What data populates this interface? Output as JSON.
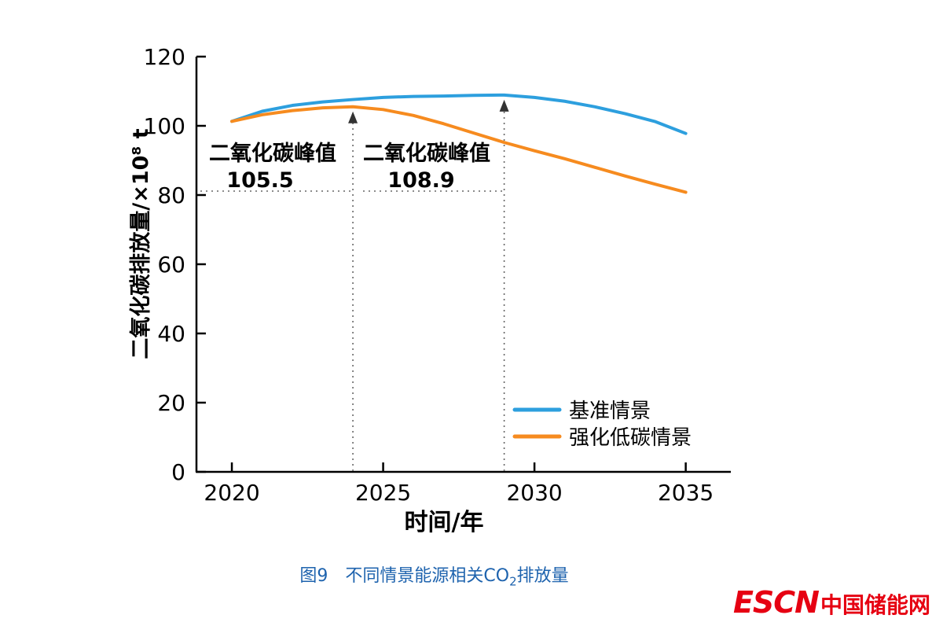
{
  "caption": {
    "prefix": "图9　不同情景能源相关CO",
    "sub": "2",
    "suffix": "排放量"
  },
  "logo": {
    "en": "ESCN",
    "cn": "中国储能网",
    "color": "#E60012"
  },
  "chart_data": {
    "type": "line",
    "title": "",
    "xlabel": "时间/年",
    "ylabel": "二氧化碳排放量/×10⁸ t",
    "xlim": [
      2018.83,
      2036.49
    ],
    "ylim": [
      0,
      120
    ],
    "xticks": [
      2020,
      2025,
      2030,
      2035
    ],
    "yticks": [
      0,
      20,
      40,
      60,
      80,
      100,
      120
    ],
    "grid": false,
    "legend_position": "inside-bottom-right",
    "x": [
      2020,
      2021,
      2022,
      2023,
      2024,
      2025,
      2026,
      2027,
      2028,
      2029,
      2030,
      2031,
      2032,
      2033,
      2034,
      2035
    ],
    "series": [
      {
        "name": "基准情景",
        "color": "#2D9FDE",
        "values": [
          101.3,
          104.2,
          105.9,
          106.9,
          107.6,
          108.2,
          108.5,
          108.6,
          108.8,
          108.9,
          108.2,
          107.1,
          105.5,
          103.5,
          101.2,
          97.8
        ]
      },
      {
        "name": "强化低碳情景",
        "color": "#F68B1F",
        "values": [
          101.3,
          103.2,
          104.4,
          105.2,
          105.5,
          104.7,
          103.0,
          100.6,
          97.9,
          95.2,
          92.8,
          90.5,
          88.0,
          85.5,
          83.1,
          80.8
        ]
      }
    ],
    "annotations": [
      {
        "label": "二氧化碳峰值",
        "value": "105.5",
        "year": 2024,
        "peak": 105.5,
        "series": "强化低碳情景"
      },
      {
        "label": "二氧化碳峰值",
        "value": "108.9",
        "year": 2029,
        "peak": 108.9,
        "series": "基准情景"
      }
    ]
  }
}
